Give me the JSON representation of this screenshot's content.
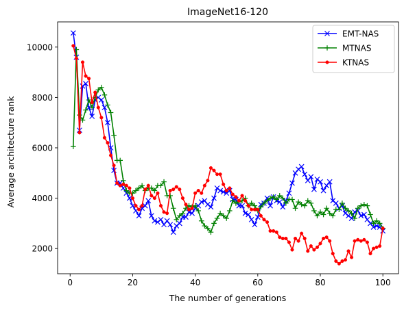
{
  "chart_data": {
    "type": "line",
    "title": "ImageNet16-120",
    "xlabel": "The number of generations",
    "ylabel": "Average architecture rank",
    "xlim": [
      -4,
      105
    ],
    "ylim": [
      1000,
      11000
    ],
    "x_ticks": [
      0,
      20,
      40,
      60,
      80,
      100
    ],
    "y_ticks": [
      2000,
      4000,
      6000,
      8000,
      10000
    ],
    "grid": false,
    "legend_position": "top-right",
    "x": [
      1,
      2,
      3,
      4,
      5,
      6,
      7,
      8,
      9,
      10,
      11,
      12,
      13,
      14,
      15,
      16,
      17,
      18,
      19,
      20,
      21,
      22,
      23,
      24,
      25,
      26,
      27,
      28,
      29,
      30,
      31,
      32,
      33,
      34,
      35,
      36,
      37,
      38,
      39,
      40,
      41,
      42,
      43,
      44,
      45,
      46,
      47,
      48,
      49,
      50,
      51,
      52,
      53,
      54,
      55,
      56,
      57,
      58,
      59,
      60,
      61,
      62,
      63,
      64,
      65,
      66,
      67,
      68,
      69,
      70,
      71,
      72,
      73,
      74,
      75,
      76,
      77,
      78,
      79,
      80,
      81,
      82,
      83,
      84,
      85,
      86,
      87,
      88,
      89,
      90,
      91,
      92,
      93,
      94,
      95,
      96,
      97,
      98,
      99,
      100
    ],
    "series": [
      {
        "name": "EMT-NAS",
        "color": "#0000ff",
        "marker": "x",
        "values": [
          10560,
          9600,
          6700,
          8450,
          8550,
          7600,
          7250,
          7900,
          8000,
          7900,
          7600,
          7000,
          6000,
          5100,
          4600,
          4600,
          4400,
          4200,
          4000,
          3700,
          3500,
          3300,
          3600,
          3700,
          3900,
          3300,
          3100,
          3050,
          3150,
          2950,
          3100,
          2950,
          2650,
          2900,
          3000,
          3250,
          3250,
          3450,
          3400,
          3600,
          3700,
          3850,
          3900,
          3750,
          3650,
          4000,
          4400,
          4300,
          4250,
          4200,
          4300,
          3950,
          3950,
          3700,
          3700,
          3400,
          3350,
          3150,
          2950,
          3250,
          3750,
          3800,
          4000,
          3700,
          4050,
          3900,
          3850,
          3650,
          3900,
          4200,
          4600,
          5000,
          5150,
          5250,
          4950,
          4700,
          4850,
          4350,
          4750,
          4650,
          4300,
          4500,
          4650,
          3900,
          3800,
          3600,
          3700,
          3400,
          3300,
          3200,
          3450,
          3500,
          3300,
          3350,
          3150,
          3000,
          2850,
          2900,
          2850,
          2700
        ]
      },
      {
        "name": "MTNAS",
        "color": "#008000",
        "marker": "+",
        "values": [
          6050,
          9900,
          7300,
          7100,
          7500,
          7900,
          7600,
          8000,
          8300,
          8400,
          8100,
          7700,
          7400,
          6500,
          5500,
          5500,
          4700,
          4300,
          4200,
          4200,
          4300,
          4400,
          4500,
          4300,
          4400,
          4400,
          4300,
          4500,
          4500,
          4650,
          4100,
          4100,
          3600,
          3150,
          3300,
          3400,
          3600,
          3700,
          3650,
          3700,
          3500,
          3100,
          2900,
          2800,
          2650,
          3000,
          3200,
          3400,
          3300,
          3200,
          3500,
          3900,
          3800,
          3850,
          3900,
          4000,
          3700,
          3800,
          3700,
          3500,
          3650,
          3800,
          3900,
          4000,
          4050,
          3950,
          4100,
          4000,
          3800,
          3950,
          3950,
          3600,
          3850,
          3750,
          3700,
          3900,
          3800,
          3500,
          3300,
          3450,
          3350,
          3600,
          3400,
          3300,
          3550,
          3550,
          3800,
          3600,
          3500,
          3400,
          3200,
          3600,
          3700,
          3750,
          3700,
          3350,
          3000,
          3100,
          3000,
          2800
        ]
      },
      {
        "name": "KTNAS",
        "color": "#ff0000",
        "marker": "o",
        "values": [
          10050,
          9550,
          6600,
          9400,
          8850,
          8750,
          7800,
          8200,
          7600,
          7200,
          6400,
          6200,
          5700,
          5300,
          4600,
          4500,
          4550,
          4500,
          4400,
          4000,
          3700,
          3550,
          3700,
          4350,
          4500,
          4100,
          4000,
          4200,
          3700,
          3450,
          3400,
          4300,
          4350,
          4450,
          4350,
          4000,
          3750,
          3550,
          3600,
          4200,
          4300,
          4200,
          4500,
          4700,
          5200,
          5100,
          4950,
          4950,
          4550,
          4300,
          4400,
          4150,
          4050,
          3900,
          4100,
          3900,
          3700,
          3550,
          3550,
          3550,
          3300,
          3150,
          3050,
          2700,
          2700,
          2650,
          2450,
          2400,
          2400,
          2250,
          1950,
          2400,
          2300,
          2600,
          2400,
          1900,
          2100,
          1950,
          2050,
          2200,
          2400,
          2450,
          2300,
          1800,
          1500,
          1400,
          1500,
          1550,
          1900,
          1650,
          2300,
          2350,
          2300,
          2350,
          2250,
          1800,
          2000,
          2050,
          2100,
          2800
        ]
      }
    ]
  }
}
